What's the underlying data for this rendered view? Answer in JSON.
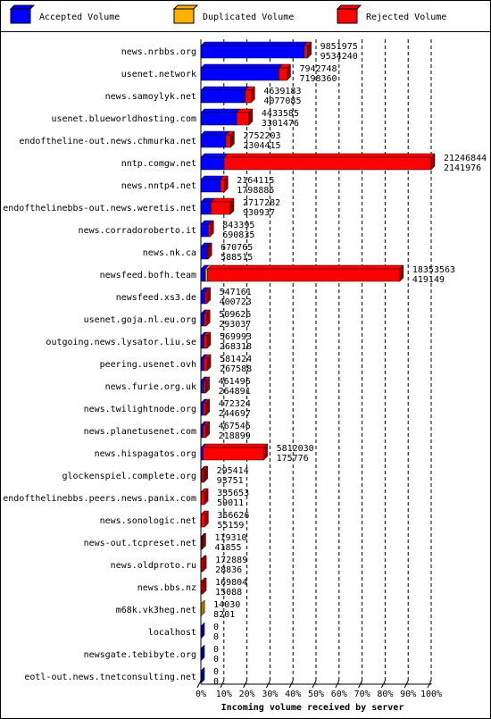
{
  "chart_data": {
    "type": "bar",
    "orientation": "horizontal",
    "stacked": true,
    "x_label": "Incoming volume received by server",
    "categories": [
      "news.nrbbs.org",
      "usenet.network",
      "news.samoylyk.net",
      "usenet.blueworldhosting.com",
      "endoftheline-out.news.chmurka.net",
      "nntp.comgw.net",
      "news.nntp4.net",
      "endofthelinebbs-out.news.weretis.net",
      "news.corradoroberto.it",
      "news.nk.ca",
      "newsfeed.bofh.team",
      "newsfeed.xs3.de",
      "usenet.goja.nl.eu.org",
      "outgoing.news.lysator.liu.se",
      "peering.usenet.ovh",
      "news.furie.org.uk",
      "news.twilightnode.org",
      "news.planetusenet.com",
      "news.hispagatos.org",
      "glockenspiel.complete.org",
      "endofthelinebbs.peers.news.panix.com",
      "news.sonologic.net",
      "news-out.tcpreset.net",
      "news.oldproto.ru",
      "news.bbs.nz",
      "m68k.vk3heg.net",
      "localhost",
      "newsgate.tebibyte.org",
      "eotl-out.news.tnetconsulting.net"
    ],
    "totals": [
      9851975,
      7942748,
      4639183,
      4433585,
      2752203,
      21246844,
      2164115,
      2717282,
      843395,
      670765,
      18353563,
      547161,
      509626,
      569993,
      581424,
      461496,
      472324,
      467546,
      5812030,
      295414,
      335653,
      356626,
      119310,
      172889,
      169804,
      14030,
      0,
      0,
      0
    ],
    "series": [
      {
        "name": "Accepted Volume",
        "color": "#0000ff",
        "values": [
          9534240,
          7198360,
          4077085,
          3301476,
          2304415,
          2141976,
          1798885,
          930937,
          690835,
          588515,
          419149,
          400723,
          293037,
          268318,
          267588,
          264891,
          244697,
          218899,
          175776,
          93751,
          59011,
          55159,
          41855,
          28836,
          15088,
          8201,
          0,
          0,
          0
        ]
      },
      {
        "name": "Duplicated Volume",
        "color": "#ffb000",
        "values": [
          0,
          0,
          0,
          0,
          0,
          0,
          0,
          0,
          0,
          0,
          200000,
          0,
          0,
          0,
          0,
          0,
          0,
          0,
          0,
          0,
          0,
          0,
          0,
          0,
          0,
          5829,
          0,
          0,
          0
        ]
      },
      {
        "name": "Rejected Volume",
        "color": "#ff0000",
        "values": [
          317735,
          744388,
          562098,
          1132109,
          447788,
          19104868,
          365230,
          1786345,
          152560,
          82250,
          17734414,
          146438,
          216589,
          301675,
          313836,
          196605,
          227627,
          248647,
          5636254,
          201663,
          276642,
          301467,
          77455,
          144053,
          154716,
          0,
          0,
          0,
          0
        ]
      }
    ],
    "xlim": [
      0,
      21246844
    ],
    "xticks": [
      {
        "value": 0,
        "label": "0%"
      },
      {
        "value": 2124684.4,
        "label": "10%"
      },
      {
        "value": 4249368.8,
        "label": "20%"
      },
      {
        "value": 6374053.2,
        "label": "30%"
      },
      {
        "value": 8498737.6,
        "label": "40%"
      },
      {
        "value": 10623422,
        "label": "50%"
      },
      {
        "value": 12748106.4,
        "label": "60%"
      },
      {
        "value": 14872790.8,
        "label": "70%"
      },
      {
        "value": 16997475.2,
        "label": "80%"
      },
      {
        "value": 19122159.6,
        "label": "90%"
      },
      {
        "value": 21246844,
        "label": "100%"
      }
    ],
    "grid": true
  }
}
